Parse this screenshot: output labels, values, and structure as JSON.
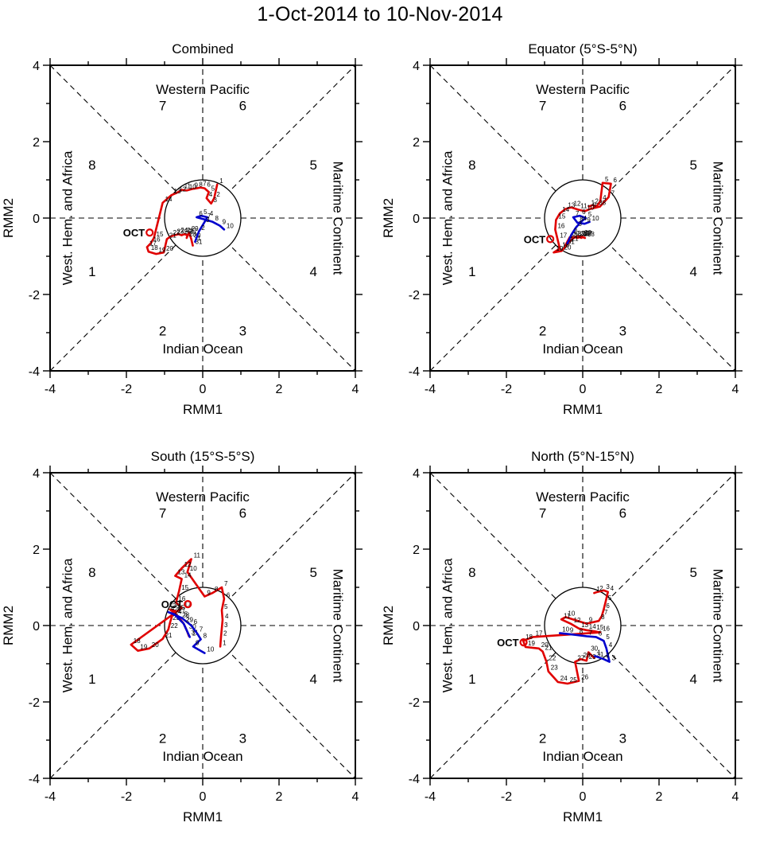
{
  "figure_title": "1-Oct-2014 to 10-Nov-2014",
  "chart_data": {
    "type": "line",
    "title": "1-Oct-2014 to 10-Nov-2014",
    "subtitle": "MJO (RMM1, RMM2) phase-space trajectories, 2x2 panels",
    "xlabel": "RMM1",
    "ylabel": "RMM2",
    "xlim": [
      -4,
      4
    ],
    "ylim": [
      -4,
      4
    ],
    "ticks": [
      -4,
      -2,
      0,
      2,
      4
    ],
    "minor_tick_step": 1,
    "grid": false,
    "legend_position": "none",
    "unit_circle_radius": 1,
    "colors": {
      "october": "#e00000",
      "november": "#0000cd",
      "axis": "#000000"
    },
    "region_labels": {
      "top": "Western Pacific",
      "bottom": "Indian Ocean",
      "right": "Maritime Continent",
      "left": "West. Hem. and Africa"
    },
    "phase_labels": [
      {
        "n": "1",
        "x": -2.9,
        "y": -1.4
      },
      {
        "n": "2",
        "x": -1.05,
        "y": -2.95
      },
      {
        "n": "3",
        "x": 1.05,
        "y": -2.95
      },
      {
        "n": "4",
        "x": 2.9,
        "y": -1.4
      },
      {
        "n": "5",
        "x": 2.9,
        "y": 1.4
      },
      {
        "n": "6",
        "x": 1.05,
        "y": 2.95
      },
      {
        "n": "7",
        "x": -1.05,
        "y": 2.95
      },
      {
        "n": "8",
        "x": -2.9,
        "y": 1.4
      }
    ],
    "panels": [
      {
        "id": "combined",
        "title": "Combined",
        "month_label": {
          "text": "OCT",
          "x": -1.62,
          "y": -0.38
        },
        "series": [
          {
            "name": "October",
            "color_key": "october",
            "day_start": 1,
            "points": [
              [
                0.38,
                0.88
              ],
              [
                0.3,
                0.52
              ],
              [
                0.22,
                0.38
              ],
              [
                0.1,
                0.52
              ],
              [
                0.16,
                0.68
              ],
              [
                0.05,
                0.78
              ],
              [
                -0.06,
                0.8
              ],
              [
                -0.16,
                0.78
              ],
              [
                -0.28,
                0.76
              ],
              [
                -0.42,
                0.72
              ],
              [
                -0.55,
                0.74
              ],
              [
                -0.68,
                0.66
              ],
              [
                -0.82,
                0.6
              ],
              [
                -1.05,
                0.4
              ],
              [
                -1.28,
                -0.52
              ],
              [
                -1.36,
                -0.66
              ],
              [
                -1.46,
                -0.76
              ],
              [
                -1.42,
                -0.88
              ],
              [
                -1.22,
                -0.94
              ],
              [
                -1.02,
                -0.9
              ],
              [
                -0.94,
                -0.55
              ],
              [
                -0.84,
                -0.48
              ],
              [
                -0.74,
                -0.45
              ],
              [
                -0.64,
                -0.42
              ],
              [
                -0.55,
                -0.45
              ],
              [
                -0.48,
                -0.42
              ],
              [
                -0.4,
                -0.45
              ],
              [
                -0.42,
                -0.52
              ],
              [
                -0.36,
                -0.38
              ],
              [
                -0.3,
                -0.55
              ],
              [
                -0.26,
                -0.72
              ]
            ]
          },
          {
            "name": "November",
            "color_key": "november",
            "day_start": 1,
            "points": [
              [
                -0.2,
                -0.62
              ],
              [
                -0.1,
                -0.35
              ],
              [
                0.02,
                -0.15
              ],
              [
                0.12,
                0.02
              ],
              [
                -0.04,
                0.06
              ],
              [
                -0.16,
                0.02
              ],
              [
                0.06,
                -0.04
              ],
              [
                0.26,
                -0.1
              ],
              [
                0.45,
                -0.2
              ],
              [
                0.56,
                -0.3
              ]
            ]
          }
        ]
      },
      {
        "id": "equator",
        "title": "Equator (5°S-5°N)",
        "month_label": {
          "text": "OCT",
          "x": -1.08,
          "y": -0.55
        },
        "series": [
          {
            "name": "October",
            "color_key": "october",
            "day_start": 1,
            "points": [
              [
                0.16,
                0.3
              ],
              [
                0.26,
                0.34
              ],
              [
                0.36,
                0.3
              ],
              [
                0.46,
                0.44
              ],
              [
                0.52,
                0.92
              ],
              [
                0.74,
                0.9
              ],
              [
                0.68,
                0.55
              ],
              [
                0.45,
                0.3
              ],
              [
                0.2,
                0.24
              ],
              [
                0.05,
                0.18
              ],
              [
                -0.12,
                0.22
              ],
              [
                -0.3,
                0.28
              ],
              [
                -0.45,
                0.24
              ],
              [
                -0.6,
                0.12
              ],
              [
                -0.7,
                -0.05
              ],
              [
                -0.72,
                -0.3
              ],
              [
                -0.66,
                -0.55
              ],
              [
                -0.6,
                -0.8
              ],
              [
                -0.76,
                -0.9
              ],
              [
                -0.55,
                -0.86
              ],
              [
                -0.36,
                -0.64
              ],
              [
                -0.28,
                -0.55
              ],
              [
                -0.2,
                -0.5
              ],
              [
                -0.14,
                -0.52
              ],
              [
                -0.08,
                -0.5
              ],
              [
                -0.04,
                -0.52
              ],
              [
                0.0,
                -0.5
              ],
              [
                0.06,
                -0.52
              ],
              [
                -0.02,
                -0.48
              ],
              [
                -0.34,
                -0.5
              ],
              [
                -0.46,
                -0.72
              ]
            ]
          },
          {
            "name": "November",
            "color_key": "november",
            "day_start": 1,
            "points": [
              [
                -0.4,
                -0.66
              ],
              [
                -0.3,
                -0.44
              ],
              [
                -0.18,
                -0.25
              ],
              [
                -0.05,
                -0.1
              ],
              [
                0.08,
                0.0
              ],
              [
                -0.08,
                0.06
              ],
              [
                -0.25,
                0.02
              ],
              [
                -0.14,
                -0.12
              ],
              [
                0.05,
                -0.15
              ],
              [
                0.18,
                -0.1
              ]
            ]
          }
        ]
      },
      {
        "id": "south",
        "title": "South (15°S-5°S)",
        "month_label": {
          "text": "OCT",
          "x": -0.62,
          "y": 0.56
        },
        "series": [
          {
            "name": "October",
            "color_key": "october",
            "day_start": 1,
            "points": [
              [
                0.46,
                -0.55
              ],
              [
                0.48,
                -0.3
              ],
              [
                0.5,
                -0.08
              ],
              [
                0.52,
                0.15
              ],
              [
                0.5,
                0.4
              ],
              [
                0.56,
                0.7
              ],
              [
                0.5,
                1.0
              ],
              [
                0.25,
                0.85
              ],
              [
                0.05,
                0.76
              ],
              [
                -0.4,
                1.4
              ],
              [
                -0.3,
                1.74
              ],
              [
                -0.55,
                1.5
              ],
              [
                -0.72,
                1.3
              ],
              [
                -0.55,
                1.22
              ],
              [
                -0.62,
                0.9
              ],
              [
                -0.7,
                0.6
              ],
              [
                -0.55,
                0.46
              ],
              [
                -1.88,
                -0.5
              ],
              [
                -1.7,
                -0.66
              ],
              [
                -1.4,
                -0.6
              ],
              [
                -1.05,
                -0.35
              ],
              [
                -0.9,
                -0.1
              ],
              [
                -0.85,
                0.1
              ],
              [
                -0.8,
                0.26
              ],
              [
                -0.72,
                0.38
              ],
              [
                -0.86,
                0.42
              ],
              [
                -0.7,
                0.3
              ],
              [
                -0.6,
                0.18
              ],
              [
                -0.5,
                0.05
              ],
              [
                -0.42,
                -0.12
              ],
              [
                -0.36,
                -0.28
              ]
            ]
          },
          {
            "name": "November",
            "color_key": "november",
            "day_start": 1,
            "points": [
              [
                -0.34,
                -0.3
              ],
              [
                -0.5,
                0.05
              ],
              [
                -0.75,
                0.3
              ],
              [
                -0.9,
                0.35
              ],
              [
                -0.55,
                0.2
              ],
              [
                -0.3,
                0.0
              ],
              [
                -0.15,
                -0.2
              ],
              [
                -0.05,
                -0.36
              ],
              [
                -0.25,
                -0.55
              ],
              [
                0.05,
                -0.72
              ]
            ]
          }
        ]
      },
      {
        "id": "north",
        "title": "North (5°N-15°N)",
        "month_label": {
          "text": "OCT",
          "x": -1.78,
          "y": -0.44
        },
        "series": [
          {
            "name": "October",
            "color_key": "october",
            "day_start": 1,
            "points": [
              [
                0.3,
                0.85
              ],
              [
                0.38,
                0.88
              ],
              [
                0.55,
                0.92
              ],
              [
                0.66,
                0.88
              ],
              [
                0.6,
                0.62
              ],
              [
                0.55,
                0.42
              ],
              [
                0.5,
                0.25
              ],
              [
                0.42,
                0.12
              ],
              [
                0.1,
                0.05
              ],
              [
                -0.45,
                0.22
              ],
              [
                -0.56,
                0.16
              ],
              [
                -0.3,
                0.04
              ],
              [
                -0.1,
                -0.08
              ],
              [
                0.1,
                -0.12
              ],
              [
                0.3,
                -0.15
              ],
              [
                0.46,
                -0.18
              ],
              [
                -1.3,
                -0.3
              ],
              [
                -1.56,
                -0.4
              ],
              [
                -1.5,
                -0.56
              ],
              [
                -1.15,
                -0.6
              ],
              [
                -1.05,
                -0.68
              ],
              [
                -0.95,
                -0.95
              ],
              [
                -0.9,
                -1.2
              ],
              [
                -0.65,
                -1.48
              ],
              [
                -0.4,
                -1.52
              ],
              [
                -0.1,
                -1.45
              ],
              [
                -0.2,
                -0.95
              ],
              [
                -0.05,
                -0.88
              ],
              [
                0.1,
                -0.92
              ],
              [
                0.15,
                -0.7
              ],
              [
                0.3,
                -0.85
              ]
            ]
          },
          {
            "name": "November",
            "color_key": "november",
            "day_start": 1,
            "points": [
              [
                0.32,
                -0.8
              ],
              [
                0.55,
                -0.88
              ],
              [
                0.7,
                -0.95
              ],
              [
                0.62,
                -0.6
              ],
              [
                0.55,
                -0.4
              ],
              [
                0.35,
                -0.3
              ],
              [
                0.1,
                -0.28
              ],
              [
                -0.15,
                -0.25
              ],
              [
                -0.4,
                -0.22
              ],
              [
                -0.6,
                -0.2
              ]
            ]
          }
        ]
      }
    ]
  }
}
